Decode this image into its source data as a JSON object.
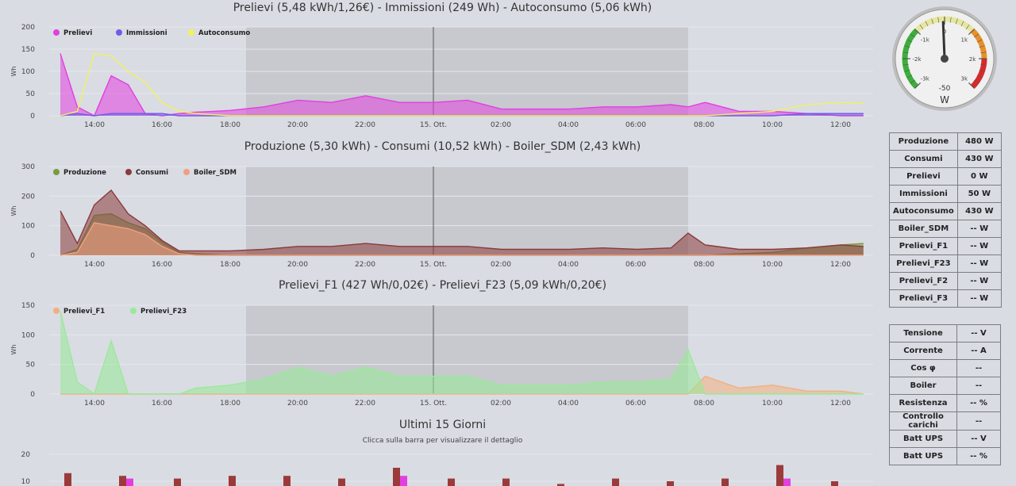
{
  "charts": [
    {
      "title": "Prelievi (5,48 kWh/1,26€) - Immissioni (249 Wh) - Autoconsumo (5,06 kWh)",
      "ylabel": "Wh",
      "yticks": [
        "200",
        "150",
        "100",
        "50",
        "0"
      ],
      "ymax": 200,
      "legend": [
        {
          "name": "Prelievi",
          "color": "#e23fe0"
        },
        {
          "name": "Immissioni",
          "color": "#6f5de6"
        },
        {
          "name": "Autoconsumo",
          "color": "#f2f25a"
        }
      ]
    },
    {
      "title": "Produzione (5,30 kWh) - Consumi (10,52 kWh) - Boiler_SDM (2,43 kWh)",
      "ylabel": "Wh",
      "yticks": [
        "300",
        "200",
        "100",
        "0"
      ],
      "ymax": 300,
      "legend": [
        {
          "name": "Produzione",
          "color": "#7a9a3c"
        },
        {
          "name": "Consumi",
          "color": "#8b3a3a"
        },
        {
          "name": "Boiler_SDM",
          "color": "#f0a080"
        }
      ]
    },
    {
      "title": "Prelievi_F1 (427 Wh/0,02€) - Prelievi_F23 (5,09 kWh/0,20€)",
      "ylabel": "Wh",
      "yticks": [
        "150",
        "100",
        "50",
        "0"
      ],
      "ymax": 150,
      "legend": [
        {
          "name": "Prelievi_F1",
          "color": "#f2b07e"
        },
        {
          "name": "Prelievi_F23",
          "color": "#98ea98"
        }
      ]
    }
  ],
  "xticks": [
    "14:00",
    "16:00",
    "18:00",
    "20:00",
    "22:00",
    "15. Ott.",
    "02:00",
    "04:00",
    "06:00",
    "08:00",
    "10:00",
    "12:00"
  ],
  "chart_data": [
    {
      "type": "area",
      "title": "Prelievi (5,48 kWh/1,26€) - Immissioni (249 Wh) - Autoconsumo (5,06 kWh)",
      "ylabel": "Wh",
      "ylim": [
        0,
        200
      ],
      "x": [
        "13:00",
        "13:30",
        "14:00",
        "14:30",
        "15:00",
        "15:30",
        "16:00",
        "16:30",
        "17:00",
        "18:00",
        "19:00",
        "20:00",
        "21:00",
        "22:00",
        "23:00",
        "00:00",
        "01:00",
        "02:00",
        "03:00",
        "04:00",
        "05:00",
        "06:00",
        "07:00",
        "07:30",
        "08:00",
        "09:00",
        "10:00",
        "11:00",
        "12:00",
        "12:40"
      ],
      "series": [
        {
          "name": "Prelievi",
          "values": [
            140,
            20,
            0,
            90,
            70,
            5,
            0,
            5,
            8,
            12,
            20,
            35,
            30,
            45,
            30,
            30,
            35,
            15,
            15,
            15,
            20,
            20,
            25,
            20,
            30,
            10,
            10,
            5,
            0,
            0
          ]
        },
        {
          "name": "Immissioni",
          "values": [
            0,
            5,
            0,
            5,
            5,
            5,
            5,
            0,
            0,
            0,
            0,
            0,
            0,
            0,
            0,
            0,
            0,
            0,
            0,
            0,
            0,
            0,
            0,
            0,
            0,
            0,
            0,
            5,
            5,
            5
          ]
        },
        {
          "name": "Autoconsumo",
          "values": [
            0,
            10,
            140,
            135,
            100,
            75,
            30,
            10,
            5,
            0,
            0,
            0,
            0,
            0,
            0,
            0,
            0,
            0,
            0,
            0,
            0,
            0,
            0,
            0,
            0,
            5,
            10,
            25,
            30,
            28
          ]
        }
      ]
    },
    {
      "type": "area",
      "title": "Produzione (5,30 kWh) - Consumi (10,52 kWh) - Boiler_SDM (2,43 kWh)",
      "ylabel": "Wh",
      "ylim": [
        0,
        300
      ],
      "x": [
        "13:00",
        "13:30",
        "14:00",
        "14:30",
        "15:00",
        "15:30",
        "16:00",
        "16:30",
        "17:00",
        "18:00",
        "19:00",
        "20:00",
        "21:00",
        "22:00",
        "23:00",
        "00:00",
        "01:00",
        "02:00",
        "03:00",
        "04:00",
        "05:00",
        "06:00",
        "07:00",
        "07:30",
        "08:00",
        "09:00",
        "10:00",
        "11:00",
        "12:00",
        "12:40"
      ],
      "series": [
        {
          "name": "Produzione",
          "values": [
            0,
            20,
            135,
            140,
            110,
            90,
            45,
            10,
            5,
            0,
            0,
            0,
            0,
            0,
            0,
            0,
            0,
            0,
            0,
            0,
            0,
            0,
            0,
            0,
            0,
            5,
            10,
            25,
            35,
            40
          ]
        },
        {
          "name": "Consumi",
          "values": [
            150,
            40,
            170,
            220,
            140,
            100,
            50,
            15,
            15,
            15,
            20,
            30,
            30,
            40,
            30,
            30,
            30,
            20,
            20,
            20,
            25,
            20,
            25,
            75,
            35,
            20,
            20,
            25,
            35,
            30
          ]
        },
        {
          "name": "Boiler_SDM",
          "values": [
            0,
            10,
            110,
            100,
            90,
            70,
            30,
            5,
            0,
            0,
            0,
            0,
            0,
            0,
            0,
            0,
            0,
            0,
            0,
            0,
            0,
            0,
            0,
            0,
            0,
            0,
            0,
            0,
            0,
            0
          ]
        }
      ]
    },
    {
      "type": "area",
      "title": "Prelievi_F1 (427 Wh/0,02€) - Prelievi_F23 (5,09 kWh/0,20€)",
      "ylabel": "Wh",
      "ylim": [
        0,
        150
      ],
      "x": [
        "13:00",
        "13:30",
        "14:00",
        "14:30",
        "15:00",
        "15:30",
        "16:00",
        "16:30",
        "17:00",
        "18:00",
        "19:00",
        "20:00",
        "21:00",
        "22:00",
        "23:00",
        "00:00",
        "01:00",
        "02:00",
        "03:00",
        "04:00",
        "05:00",
        "06:00",
        "07:00",
        "07:30",
        "08:00",
        "09:00",
        "10:00",
        "11:00",
        "12:00",
        "12:40"
      ],
      "series": [
        {
          "name": "Prelievi_F1",
          "values": [
            0,
            0,
            0,
            0,
            0,
            0,
            0,
            0,
            0,
            0,
            0,
            0,
            0,
            0,
            0,
            0,
            0,
            0,
            0,
            0,
            0,
            0,
            0,
            0,
            30,
            10,
            15,
            5,
            5,
            0
          ]
        },
        {
          "name": "Prelievi_F23",
          "values": [
            140,
            20,
            0,
            90,
            0,
            0,
            0,
            0,
            10,
            15,
            25,
            45,
            30,
            45,
            30,
            30,
            30,
            15,
            15,
            15,
            20,
            20,
            25,
            75,
            0,
            0,
            0,
            0,
            0,
            0
          ]
        }
      ]
    },
    {
      "type": "bar",
      "title": "Ultimi 15 Giorni",
      "subtitle": "Clicca sulla barra per visualizzare il dettaglio",
      "ylim": [
        0,
        20
      ],
      "series": [
        {
          "name": "Consumi",
          "color": "#9c3a3a",
          "values": [
            13,
            12,
            11,
            12,
            12,
            11,
            15,
            11,
            11,
            9,
            11,
            10,
            11,
            16,
            10
          ]
        },
        {
          "name": "Prelievi",
          "color": "#e23fe0",
          "values": [
            0,
            11,
            0,
            0,
            0,
            0,
            12,
            0,
            0,
            0,
            0,
            0,
            0,
            11,
            0
          ]
        }
      ]
    }
  ],
  "bottom": {
    "title": "Ultimi 15 Giorni",
    "subtitle": "Clicca sulla barra per visualizzare il dettaglio",
    "yticks": [
      "20",
      "10"
    ]
  },
  "gauge": {
    "value": "-50",
    "unit": "W",
    "ticks": [
      "-3k",
      "-2k",
      "-1k",
      "0",
      "1k",
      "2k",
      "3k"
    ],
    "value_num": -50,
    "min": -3000,
    "max": 3000
  },
  "table1": [
    {
      "label": "Produzione",
      "value": "480 W"
    },
    {
      "label": "Consumi",
      "value": "430 W"
    },
    {
      "label": "Prelievi",
      "value": "0 W"
    },
    {
      "label": "Immissioni",
      "value": "50 W"
    },
    {
      "label": "Autoconsumo",
      "value": "430 W"
    },
    {
      "label": "Boiler_SDM",
      "value": "-- W"
    },
    {
      "label": "Prelievi_F1",
      "value": "-- W"
    },
    {
      "label": "Prelievi_F23",
      "value": "-- W"
    },
    {
      "label": "Prelievi_F2",
      "value": "-- W"
    },
    {
      "label": "Prelievi_F3",
      "value": "-- W"
    }
  ],
  "table2": [
    {
      "label": "Tensione",
      "value": "-- V"
    },
    {
      "label": "Corrente",
      "value": "-- A"
    },
    {
      "label": "Cos φ",
      "value": "--"
    },
    {
      "label": "Boiler",
      "value": "--"
    },
    {
      "label": "Resistenza",
      "value": "-- %"
    },
    {
      "label": "Controllo carichi",
      "value": "--"
    },
    {
      "label": "Batt UPS",
      "value": "-- V"
    },
    {
      "label": "Batt UPS",
      "value": "-- %"
    }
  ]
}
